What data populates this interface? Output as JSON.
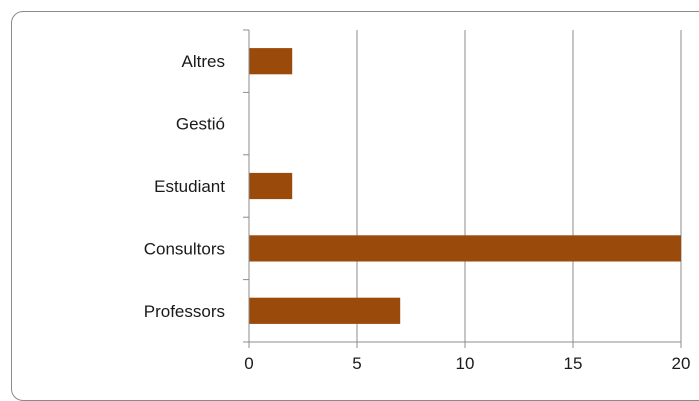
{
  "chart_data": {
    "type": "bar",
    "orientation": "horizontal",
    "categories": [
      "Altres",
      "Gestió",
      "Estudiant",
      "Consultors",
      "Professors"
    ],
    "values": [
      2,
      0,
      2,
      20,
      7
    ],
    "xlim": [
      0,
      20
    ],
    "xticks": [
      "0",
      "5",
      "10",
      "15",
      "20"
    ],
    "grid": "vertical",
    "legend": "none",
    "bar_color": "#9a4a0a",
    "grid_color": "#8c8c8c",
    "axis_color": "#8c8c8c",
    "title": "",
    "xlabel": "",
    "ylabel": ""
  }
}
